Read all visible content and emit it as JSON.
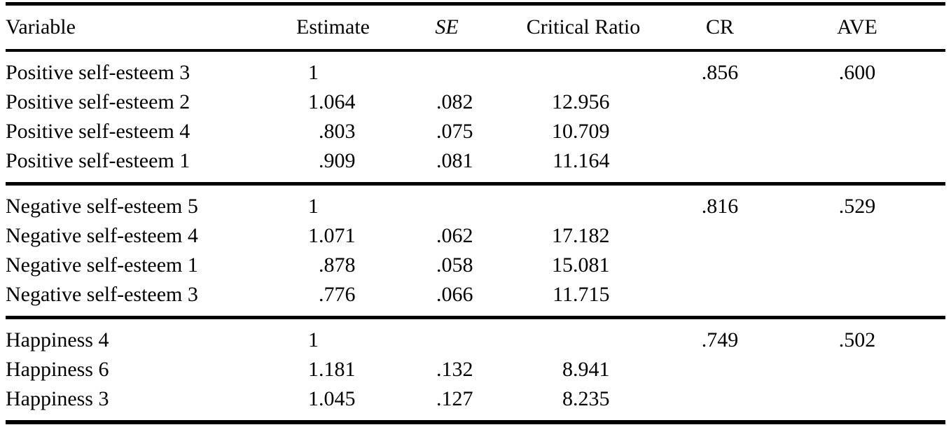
{
  "table": {
    "columns": {
      "variable": "Variable",
      "estimate": "Estimate",
      "se": "SE",
      "critical_ratio": "Critical Ratio",
      "cr": "CR",
      "ave": "AVE"
    },
    "sections": [
      {
        "rows": [
          {
            "variable": "Positive self-esteem 3",
            "estimate": "1",
            "se": "",
            "critical_ratio": "",
            "cr": ".856",
            "ave": ".600"
          },
          {
            "variable": "Positive self-esteem 2",
            "estimate": "1.064",
            "se": ".082",
            "critical_ratio": "12.956",
            "cr": "",
            "ave": ""
          },
          {
            "variable": "Positive self-esteem 4",
            "estimate": ".803",
            "se": ".075",
            "critical_ratio": "10.709",
            "cr": "",
            "ave": ""
          },
          {
            "variable": "Positive self-esteem 1",
            "estimate": ".909",
            "se": ".081",
            "critical_ratio": "11.164",
            "cr": "",
            "ave": ""
          }
        ]
      },
      {
        "rows": [
          {
            "variable": "Negative self-esteem 5",
            "estimate": "1",
            "se": "",
            "critical_ratio": "",
            "cr": ".816",
            "ave": ".529"
          },
          {
            "variable": "Negative self-esteem 4",
            "estimate": "1.071",
            "se": ".062",
            "critical_ratio": "17.182",
            "cr": "",
            "ave": ""
          },
          {
            "variable": "Negative self-esteem 1",
            "estimate": ".878",
            "se": ".058",
            "critical_ratio": "15.081",
            "cr": "",
            "ave": ""
          },
          {
            "variable": "Negative self-esteem 3",
            "estimate": ".776",
            "se": ".066",
            "critical_ratio": "11.715",
            "cr": "",
            "ave": ""
          }
        ]
      },
      {
        "rows": [
          {
            "variable": "Happiness 4",
            "estimate": "1",
            "se": "",
            "critical_ratio": "",
            "cr": ".749",
            "ave": ".502"
          },
          {
            "variable": "Happiness 6",
            "estimate": "1.181",
            "se": ".132",
            "critical_ratio": "8.941",
            "cr": "",
            "ave": ""
          },
          {
            "variable": "Happiness 3",
            "estimate": "1.045",
            "se": ".127",
            "critical_ratio": "8.235",
            "cr": "",
            "ave": ""
          }
        ]
      }
    ]
  }
}
